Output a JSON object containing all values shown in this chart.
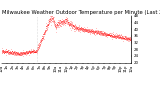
{
  "title": "Milwaukee Weather Outdoor Temperature per Minute (Last 24 Hours)",
  "line_color": "#ff0000",
  "background_color": "#ffffff",
  "ylim": [
    20,
    48
  ],
  "yticks": [
    20,
    24,
    28,
    32,
    36,
    40,
    44,
    48
  ],
  "ytick_labels": [
    "20",
    "24",
    "28",
    "32",
    "36",
    "40",
    "44",
    "48"
  ],
  "xlim": [
    0,
    1440
  ],
  "vline_x": 390,
  "title_fontsize": 3.8,
  "tick_fontsize": 2.8,
  "seed": 12
}
